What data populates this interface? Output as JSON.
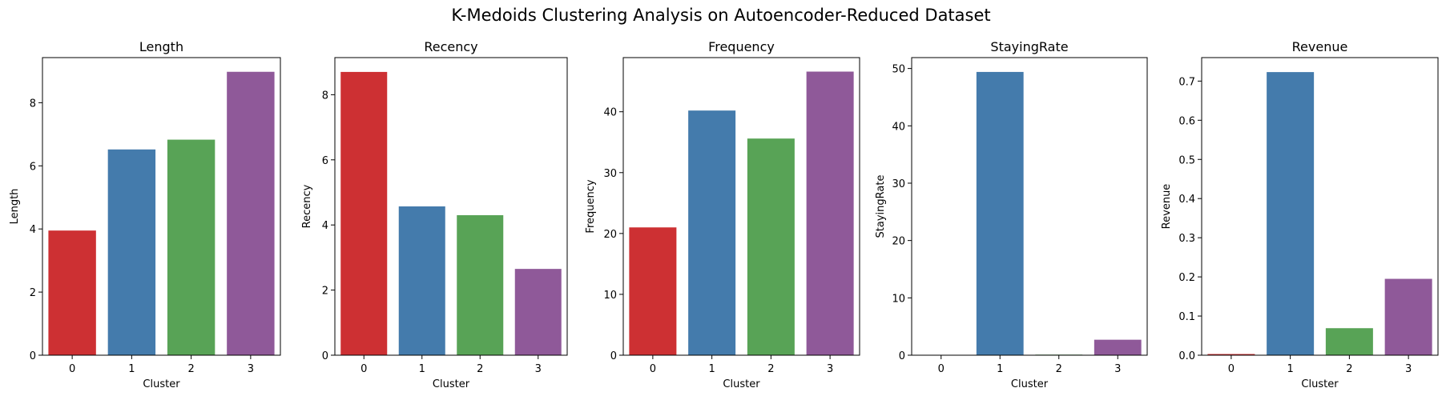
{
  "figure": {
    "title": "K-Medoids Clustering Analysis on Autoencoder-Reduced Dataset"
  },
  "colors": {
    "cluster_palette": [
      "#cd3033",
      "#447bac",
      "#58a356",
      "#8f5999"
    ],
    "axis": "#000000",
    "background": "#ffffff"
  },
  "chart_data": [
    {
      "type": "bar",
      "title": "Length",
      "xlabel": "Cluster",
      "ylabel": "Length",
      "categories": [
        "0",
        "1",
        "2",
        "3"
      ],
      "values": [
        3.95,
        6.52,
        6.83,
        8.98
      ],
      "ylim": [
        0,
        9.43
      ],
      "yticks": [
        0,
        2,
        4,
        6,
        8
      ],
      "grid": false,
      "legend": "none"
    },
    {
      "type": "bar",
      "title": "Recency",
      "xlabel": "Cluster",
      "ylabel": "Recency",
      "categories": [
        "0",
        "1",
        "2",
        "3"
      ],
      "values": [
        8.7,
        4.57,
        4.3,
        2.65
      ],
      "ylim": [
        0,
        9.14
      ],
      "yticks": [
        0,
        2,
        4,
        6,
        8
      ],
      "grid": false,
      "legend": "none"
    },
    {
      "type": "bar",
      "title": "Frequency",
      "xlabel": "Cluster",
      "ylabel": "Frequency",
      "categories": [
        "0",
        "1",
        "2",
        "3"
      ],
      "values": [
        21.0,
        40.2,
        35.6,
        46.6
      ],
      "ylim": [
        0,
        48.9
      ],
      "yticks": [
        0,
        10,
        20,
        30,
        40
      ],
      "grid": false,
      "legend": "none"
    },
    {
      "type": "bar",
      "title": "StayingRate",
      "xlabel": "Cluster",
      "ylabel": "StayingRate",
      "categories": [
        "0",
        "1",
        "2",
        "3"
      ],
      "values": [
        0.02,
        49.4,
        0.1,
        2.7
      ],
      "ylim": [
        0,
        51.9
      ],
      "yticks": [
        0,
        10,
        20,
        30,
        40,
        50
      ],
      "grid": false,
      "legend": "none"
    },
    {
      "type": "bar",
      "title": "Revenue",
      "xlabel": "Cluster",
      "ylabel": "Revenue",
      "categories": [
        "0",
        "1",
        "2",
        "3"
      ],
      "values": [
        0.003,
        0.723,
        0.069,
        0.195
      ],
      "ylim": [
        0,
        0.76
      ],
      "yticks": [
        "0.0",
        "0.1",
        "0.2",
        "0.3",
        "0.4",
        "0.5",
        "0.6",
        "0.7"
      ],
      "grid": false,
      "legend": "none"
    }
  ]
}
